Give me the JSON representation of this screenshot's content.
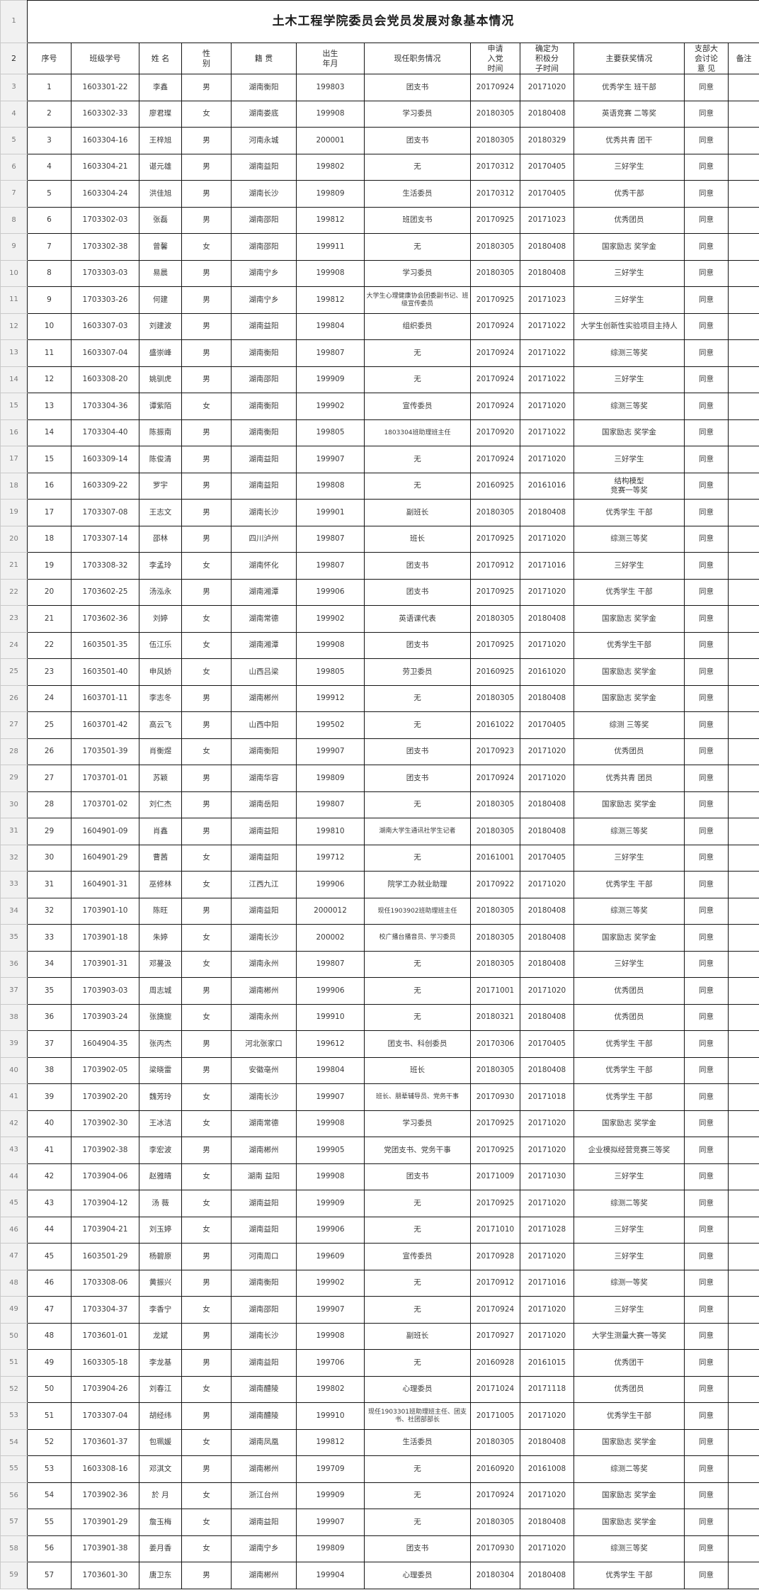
{
  "title": "土木工程学院委员会党员发展对象基本情况",
  "table": {
    "gutter": {
      "title_row": "1",
      "header_row": "2",
      "first_data_row": 3
    },
    "columns": [
      "序号",
      "班级学号",
      "姓 名",
      "性\n别",
      "籍 贯",
      "出生\n年月",
      "现任职务情况",
      "申请\n入党\n时间",
      "确定为\n积极分\n子时间",
      "主要获奖情况",
      "支部大\n会讨论\n意 见",
      "备注"
    ],
    "rows": [
      [
        "1",
        "1603301-22",
        "李鑫",
        "男",
        "湖南衡阳",
        "199803",
        "团支书",
        "20170924",
        "20171020",
        "优秀学生 班干部",
        "同意",
        ""
      ],
      [
        "2",
        "1603302-33",
        "廖君璨",
        "女",
        "湖南娄底",
        "199908",
        "学习委员",
        "20180305",
        "20180408",
        "英语竞赛 二等奖",
        "同意",
        ""
      ],
      [
        "3",
        "1603304-16",
        "王梓旭",
        "男",
        "河南永城",
        "200001",
        "团支书",
        "20180305",
        "20180329",
        "优秀共青 团干",
        "同意",
        ""
      ],
      [
        "4",
        "1603304-21",
        "谌元雄",
        "男",
        "湖南益阳",
        "199802",
        "无",
        "20170312",
        "20170405",
        "三好学生",
        "同意",
        ""
      ],
      [
        "5",
        "1603304-24",
        "洪佳旭",
        "男",
        "湖南长沙",
        "199809",
        "生活委员",
        "20170312",
        "20170405",
        "优秀干部",
        "同意",
        ""
      ],
      [
        "6",
        "1703302-03",
        "张磊",
        "男",
        "湖南邵阳",
        "199812",
        "班团支书",
        "20170925",
        "20171023",
        "优秀团员",
        "同意",
        ""
      ],
      [
        "7",
        "1703302-38",
        "曾馨",
        "女",
        "湖南邵阳",
        "199911",
        "无",
        "20180305",
        "20180408",
        "国家励志 奖学金",
        "同意",
        ""
      ],
      [
        "8",
        "1703303-03",
        "易晨",
        "男",
        "湖南宁乡",
        "199908",
        "学习委员",
        "20180305",
        "20180408",
        "三好学生",
        "同意",
        ""
      ],
      [
        "9",
        "1703303-26",
        "何建",
        "男",
        "湖南宁乡",
        "199812",
        "大学生心理健康协会团委副书记、班级宣传委员",
        "20170925",
        "20171023",
        "三好学生",
        "同意",
        ""
      ],
      [
        "10",
        "1603307-03",
        "刘建波",
        "男",
        "湖南益阳",
        "199804",
        "组织委员",
        "20170924",
        "20171022",
        "大学生创新性实验项目主持人",
        "同意",
        ""
      ],
      [
        "11",
        "1603307-04",
        "盛崇峰",
        "男",
        "湖南衡阳",
        "199807",
        "无",
        "20170924",
        "20171022",
        "综测三等奖",
        "同意",
        ""
      ],
      [
        "12",
        "1603308-20",
        "姚驯虎",
        "男",
        "湖南邵阳",
        "199909",
        "无",
        "20170924",
        "20171022",
        "三好学生",
        "同意",
        ""
      ],
      [
        "13",
        "1703304-36",
        "谭紫陌",
        "女",
        "湖南衡阳",
        "199902",
        "宣传委员",
        "20170924",
        "20171020",
        "综测三等奖",
        "同意",
        ""
      ],
      [
        "14",
        "1703304-40",
        "陈振南",
        "男",
        "湖南衡阳",
        "199805",
        "1803304班助理班主任",
        "20170920",
        "20171022",
        "国家励志 奖学金",
        "同意",
        ""
      ],
      [
        "15",
        "1603309-14",
        "陈俊清",
        "男",
        "湖南益阳",
        "199907",
        "无",
        "20170924",
        "20171020",
        "三好学生",
        "同意",
        ""
      ],
      [
        "16",
        "1603309-22",
        "罗宇",
        "男",
        "湖南益阳",
        "199808",
        "无",
        "20160925",
        "20161016",
        "结构模型\n竞赛一等奖",
        "同意",
        ""
      ],
      [
        "17",
        "1703307-08",
        "王志文",
        "男",
        "湖南长沙",
        "199901",
        "副班长",
        "20180305",
        "20180408",
        "优秀学生 干部",
        "同意",
        ""
      ],
      [
        "18",
        "1703307-14",
        "邵林",
        "男",
        "四川泸州",
        "199807",
        "班长",
        "20170925",
        "20171020",
        "综测三等奖",
        "同意",
        ""
      ],
      [
        "19",
        "1703308-32",
        "李孟玲",
        "女",
        "湖南怀化",
        "199807",
        "团支书",
        "20170912",
        "20171016",
        "三好学生",
        "同意",
        ""
      ],
      [
        "20",
        "1703602-25",
        "汤泓永",
        "男",
        "湖南湘潭",
        "199906",
        "团支书",
        "20170925",
        "20171020",
        "优秀学生 干部",
        "同意",
        ""
      ],
      [
        "21",
        "1703602-36",
        "刘婷",
        "女",
        "湖南常德",
        "199902",
        "英语课代表",
        "20180305",
        "20180408",
        "国家励志 奖学金",
        "同意",
        ""
      ],
      [
        "22",
        "1603501-35",
        "伍江乐",
        "女",
        "湖南湘潭",
        "199908",
        "团支书",
        "20170925",
        "20171020",
        "优秀学生干部",
        "同意",
        ""
      ],
      [
        "23",
        "1603501-40",
        "申风娇",
        "女",
        "山西吕梁",
        "199805",
        "劳卫委员",
        "20160925",
        "20161020",
        "国家励志 奖学金",
        "同意",
        ""
      ],
      [
        "24",
        "1603701-11",
        "李志冬",
        "男",
        "湖南郴州",
        "199912",
        "无",
        "20180305",
        "20180408",
        "国家励志 奖学金",
        "同意",
        ""
      ],
      [
        "25",
        "1603701-42",
        "高云飞",
        "男",
        "山西中阳",
        "199502",
        "无",
        "20161022",
        "20170405",
        "综测 三等奖",
        "同意",
        ""
      ],
      [
        "26",
        "1703501-39",
        "肖衡煜",
        "女",
        "湖南衡阳",
        "199907",
        "团支书",
        "20170923",
        "20171020",
        "优秀团员",
        "同意",
        ""
      ],
      [
        "27",
        "1703701-01",
        "苏颖",
        "男",
        "湖南华容",
        "199809",
        "团支书",
        "20170924",
        "20171020",
        "优秀共青 团员",
        "同意",
        ""
      ],
      [
        "28",
        "1703701-02",
        "刘仁杰",
        "男",
        "湖南岳阳",
        "199807",
        "无",
        "20180305",
        "20180408",
        "国家励志 奖学金",
        "同意",
        ""
      ],
      [
        "29",
        "1604901-09",
        "肖鑫",
        "男",
        "湖南益阳",
        "199810",
        "湖南大学生通讯社学生记者",
        "20180305",
        "20180408",
        "综测三等奖",
        "同意",
        ""
      ],
      [
        "30",
        "1604901-29",
        "曹茜",
        "女",
        "湖南益阳",
        "199712",
        "无",
        "20161001",
        "20170405",
        "三好学生",
        "同意",
        ""
      ],
      [
        "31",
        "1604901-31",
        "巫修林",
        "女",
        "江西九江",
        "199906",
        "院学工办就业助理",
        "20170922",
        "20171020",
        "优秀学生 干部",
        "同意",
        ""
      ],
      [
        "32",
        "1703901-10",
        "陈旺",
        "男",
        "湖南益阳",
        "2000012",
        "现任1903902班助理班主任",
        "20180305",
        "20180408",
        "综测三等奖",
        "同意",
        ""
      ],
      [
        "33",
        "1703901-18",
        "朱婷",
        "女",
        "湖南长沙",
        "200002",
        "校广播台播音员、学习委员",
        "20180305",
        "20180408",
        "国家励志 奖学金",
        "同意",
        ""
      ],
      [
        "34",
        "1703901-31",
        "邓蔓汲",
        "女",
        "湖南永州",
        "199807",
        "无",
        "20180305",
        "20180408",
        "三好学生",
        "同意",
        ""
      ],
      [
        "35",
        "1703903-03",
        "周志城",
        "男",
        "湖南郴州",
        "199906",
        "无",
        "20171001",
        "20171020",
        "优秀团员",
        "同意",
        ""
      ],
      [
        "36",
        "1703903-24",
        "张旖旎",
        "女",
        "湖南永州",
        "199910",
        "无",
        "20180321",
        "20180408",
        "优秀团员",
        "同意",
        ""
      ],
      [
        "37",
        "1604904-35",
        "张丙杰",
        "男",
        "河北张家口",
        "199612",
        "团支书、科创委员",
        "20170306",
        "20170405",
        "优秀学生 干部",
        "同意",
        ""
      ],
      [
        "38",
        "1703902-05",
        "梁晓雷",
        "男",
        "安徽亳州",
        "199804",
        "班长",
        "20180305",
        "20180408",
        "优秀学生 干部",
        "同意",
        ""
      ],
      [
        "39",
        "1703902-20",
        "魏芳玲",
        "女",
        "湖南长沙",
        "199907",
        "班长、朋辈辅导员、党务干事",
        "20170930",
        "20171018",
        "优秀学生 干部",
        "同意",
        ""
      ],
      [
        "40",
        "1703902-30",
        "王冰洁",
        "女",
        "湖南常德",
        "199908",
        "学习委员",
        "20170925",
        "20171020",
        "国家励志 奖学金",
        "同意",
        ""
      ],
      [
        "41",
        "1703902-38",
        "李宏波",
        "男",
        "湖南郴州",
        "199905",
        "党团支书、党务干事",
        "20170925",
        "20171020",
        "企业模拟经营竞赛三等奖",
        "同意",
        ""
      ],
      [
        "42",
        "1703904-06",
        "赵雅晴",
        "女",
        "湖南 益阳",
        "199908",
        "团支书",
        "20171009",
        "20171030",
        "三好学生",
        "同意",
        ""
      ],
      [
        "43",
        "1703904-12",
        "汤 薇",
        "女",
        "湖南益阳",
        "199909",
        "无",
        "20170925",
        "20171020",
        "综测二等奖",
        "同意",
        ""
      ],
      [
        "44",
        "1703904-21",
        "刘玉婷",
        "女",
        "湖南益阳",
        "199906",
        "无",
        "20171010",
        "20171028",
        "三好学生",
        "同意",
        ""
      ],
      [
        "45",
        "1603501-29",
        "杨碧原",
        "男",
        "河南周口",
        "199609",
        "宣传委员",
        "20170928",
        "20171020",
        "三好学生",
        "同意",
        ""
      ],
      [
        "46",
        "1703308-06",
        "黄振兴",
        "男",
        "湖南衡阳",
        "199902",
        "无",
        "20170912",
        "20171016",
        "综测一等奖",
        "同意",
        ""
      ],
      [
        "47",
        "1703304-37",
        "李香宁",
        "女",
        "湖南邵阳",
        "199907",
        "无",
        "20170924",
        "20171020",
        "三好学生",
        "同意",
        ""
      ],
      [
        "48",
        "1703601-01",
        "龙斌",
        "男",
        "湖南长沙",
        "199908",
        "副班长",
        "20170927",
        "20171020",
        "大学生测量大赛一等奖",
        "同意",
        ""
      ],
      [
        "49",
        "1603305-18",
        "李龙基",
        "男",
        "湖南益阳",
        "199706",
        "无",
        "20160928",
        "20161015",
        "优秀团干",
        "同意",
        ""
      ],
      [
        "50",
        "1703904-26",
        "刘春江",
        "女",
        "湖南醴陵",
        "199802",
        "心理委员",
        "20171024",
        "20171118",
        "优秀团员",
        "同意",
        ""
      ],
      [
        "51",
        "1703307-04",
        "胡经纬",
        "男",
        "湖南醴陵",
        "199910",
        "现任1903301班助理班主任、团支书、社团部部长",
        "20171005",
        "20171020",
        "优秀学生干部",
        "同意",
        ""
      ],
      [
        "52",
        "1703601-37",
        "包珮媛",
        "女",
        "湖南凤凰",
        "199812",
        "生活委员",
        "20180305",
        "20180408",
        "国家励志 奖学金",
        "同意",
        ""
      ],
      [
        "53",
        "1603308-16",
        "邓淇文",
        "男",
        "湖南郴州",
        "199709",
        "无",
        "20160920",
        "20161008",
        "综测二等奖",
        "同意",
        ""
      ],
      [
        "54",
        "1703902-36",
        "於 月",
        "女",
        "浙江台州",
        "199909",
        "无",
        "20170924",
        "20171020",
        "国家励志 奖学金",
        "同意",
        ""
      ],
      [
        "55",
        "1703901-29",
        "詹玉梅",
        "女",
        "湖南益阳",
        "199907",
        "无",
        "20180305",
        "20180408",
        "国家励志 奖学金",
        "同意",
        ""
      ],
      [
        "56",
        "1703901-38",
        "姜月香",
        "女",
        "湖南宁乡",
        "199809",
        "团支书",
        "20170930",
        "20171020",
        "综测三等奖",
        "同意",
        ""
      ],
      [
        "57",
        "1703601-30",
        "唐卫东",
        "男",
        "湖南郴州",
        "199904",
        "心理委员",
        "20180304",
        "20180408",
        "优秀学生 干部",
        "同意",
        ""
      ]
    ]
  }
}
